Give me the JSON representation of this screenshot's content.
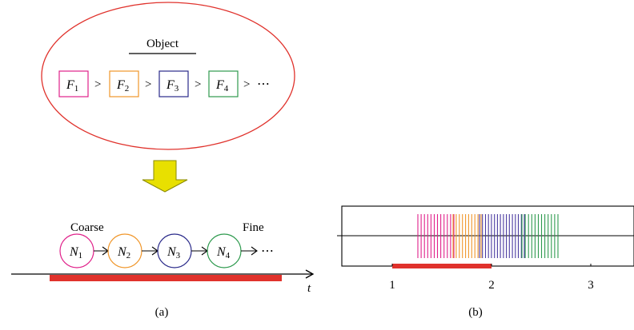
{
  "panel_a": {
    "object_title": "Object",
    "features": [
      {
        "main": "F",
        "sub": "1",
        "color": "#e0218a"
      },
      {
        "main": "F",
        "sub": "2",
        "color": "#f0962a"
      },
      {
        "main": "F",
        "sub": "3",
        "color": "#2a2a8a"
      },
      {
        "main": "F",
        "sub": "4",
        "color": "#2e9a4e"
      }
    ],
    "gt_symbol": ">",
    "ellipsis": "⋯",
    "coarse_label": "Coarse",
    "fine_label": "Fine",
    "nodes": [
      {
        "main": "N",
        "sub": "1",
        "color": "#e0218a"
      },
      {
        "main": "N",
        "sub": "2",
        "color": "#f0962a"
      },
      {
        "main": "N",
        "sub": "3",
        "color": "#2a2a8a"
      },
      {
        "main": "N",
        "sub": "4",
        "color": "#2e9a4e"
      }
    ],
    "time_label": "t",
    "caption": "(a)"
  },
  "panel_b": {
    "caption": "(b)",
    "x_ticks": [
      "1",
      "2",
      "3"
    ],
    "spike_groups": [
      {
        "color": "#e0218a"
      },
      {
        "color": "#f0962a"
      },
      {
        "color": "#4a3aa0"
      },
      {
        "color": "#2e9a4e"
      }
    ],
    "colors": {
      "bar": "#e0322c",
      "ellipse": "#e0322c",
      "arrow": "#e8e000"
    }
  }
}
